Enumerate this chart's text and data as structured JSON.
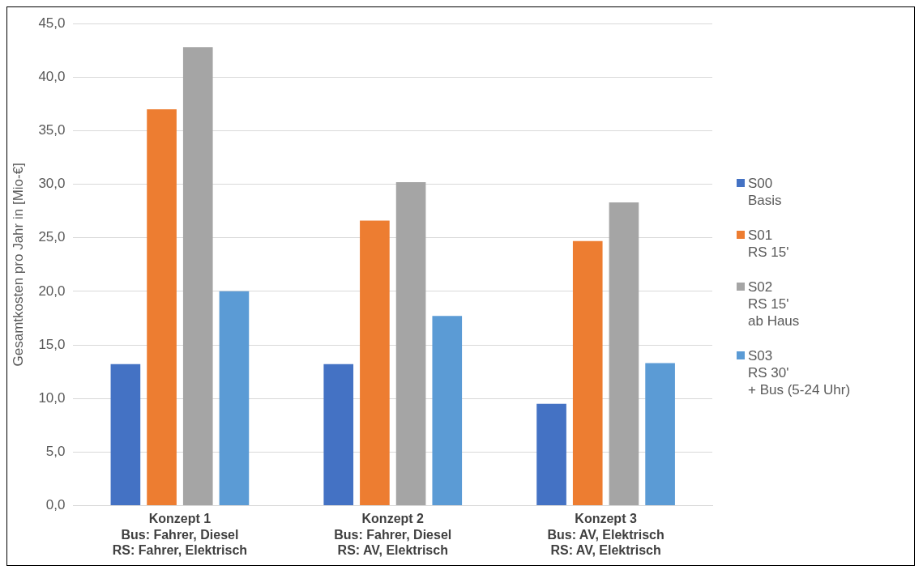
{
  "chart_data": {
    "type": "bar",
    "ylabel": "Gesamtkosten pro Jahr in [Mio-€]",
    "categories": [
      "Konzept 1\nBus: Fahrer, Diesel\nRS: Fahrer, Elektrisch",
      "Konzept 2\nBus: Fahrer, Diesel\nRS: AV, Elektrisch",
      "Konzept 3\nBus: AV, Elektrisch\nRS: AV, Elektrisch"
    ],
    "series": [
      {
        "name": "S00\nBasis",
        "color": "#4472c4",
        "values": [
          13.2,
          13.2,
          9.5
        ]
      },
      {
        "name": "S01\nRS 15'",
        "color": "#ed7d31",
        "values": [
          37.0,
          26.6,
          24.7
        ]
      },
      {
        "name": "S02\nRS 15'\nab Haus",
        "color": "#a5a5a5",
        "values": [
          42.8,
          30.2,
          28.3
        ]
      },
      {
        "name": "S03\nRS 30'\n+ Bus (5-24 Uhr)",
        "color": "#5b9bd5",
        "values": [
          20.0,
          17.7,
          13.3
        ]
      }
    ],
    "ylim": [
      0,
      45
    ],
    "yticks": [
      {
        "value": 0,
        "label": "0,0"
      },
      {
        "value": 5,
        "label": "5,0"
      },
      {
        "value": 10,
        "label": "10,0"
      },
      {
        "value": 15,
        "label": "15,0"
      },
      {
        "value": 20,
        "label": "20,0"
      },
      {
        "value": 25,
        "label": "25,0"
      },
      {
        "value": 30,
        "label": "30,0"
      },
      {
        "value": 35,
        "label": "35,0"
      },
      {
        "value": 40,
        "label": "40,0"
      },
      {
        "value": 45,
        "label": "45,0"
      }
    ],
    "grid": "y",
    "legend": "right"
  }
}
